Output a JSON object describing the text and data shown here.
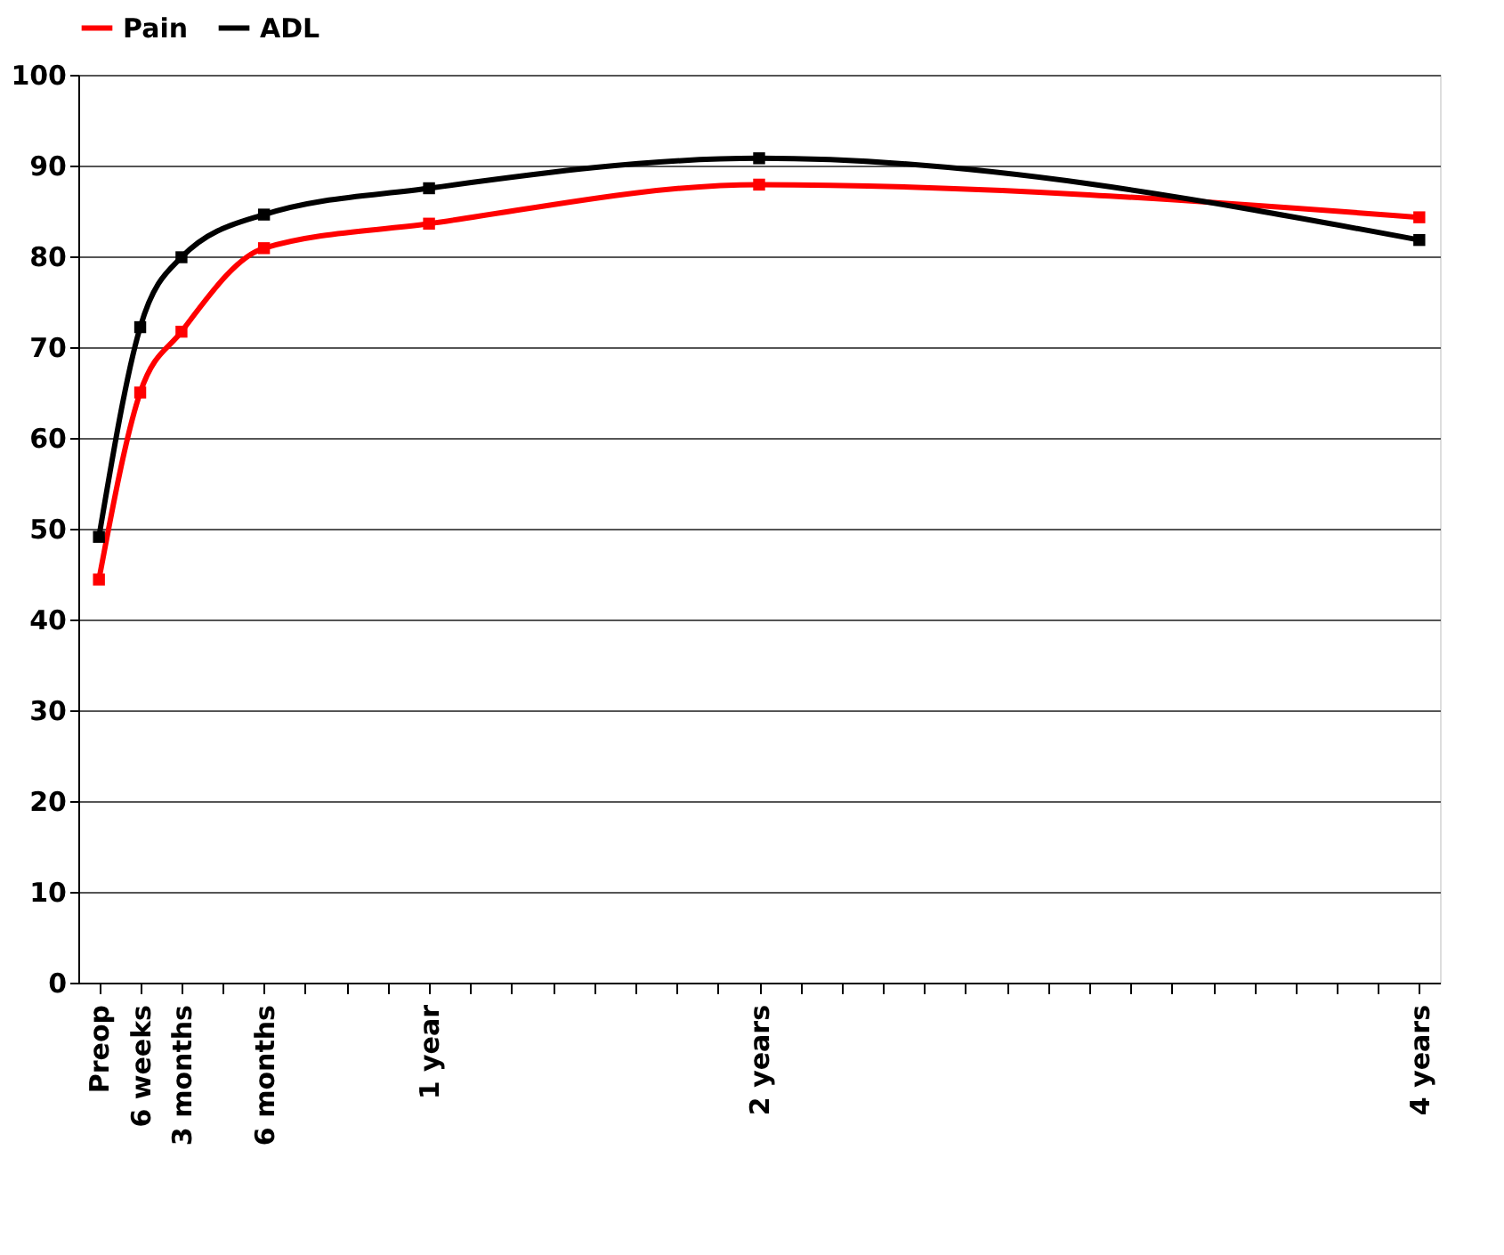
{
  "chart_data": {
    "type": "line",
    "categories": [
      "Preop",
      "6 weeks",
      "3 months",
      null,
      "6 months",
      null,
      null,
      null,
      "1 year",
      null,
      null,
      null,
      null,
      null,
      null,
      null,
      "2 years",
      null,
      null,
      null,
      null,
      null,
      null,
      null,
      null,
      null,
      null,
      null,
      null,
      null,
      null,
      null,
      "4 years"
    ],
    "series": [
      {
        "name": "Pain",
        "color": "#ff0000",
        "values": [
          44.4,
          65.0,
          71.7,
          null,
          80.9,
          null,
          null,
          null,
          83.6,
          null,
          null,
          null,
          null,
          null,
          null,
          null,
          87.9,
          null,
          null,
          null,
          null,
          null,
          null,
          null,
          null,
          null,
          null,
          null,
          null,
          null,
          null,
          null,
          84.3
        ]
      },
      {
        "name": "ADL",
        "color": "#000000",
        "values": [
          49.1,
          72.2,
          79.9,
          null,
          84.6,
          null,
          null,
          null,
          87.5,
          null,
          null,
          null,
          null,
          null,
          null,
          null,
          90.8,
          null,
          null,
          null,
          null,
          null,
          null,
          null,
          null,
          null,
          null,
          null,
          null,
          null,
          null,
          null,
          81.8
        ]
      }
    ],
    "ylim": [
      0,
      100
    ],
    "yticks": [
      0,
      10,
      20,
      30,
      40,
      50,
      60,
      70,
      80,
      90,
      100
    ],
    "grid": "y",
    "legend": "top",
    "marker": "square",
    "line_style": "solid"
  }
}
